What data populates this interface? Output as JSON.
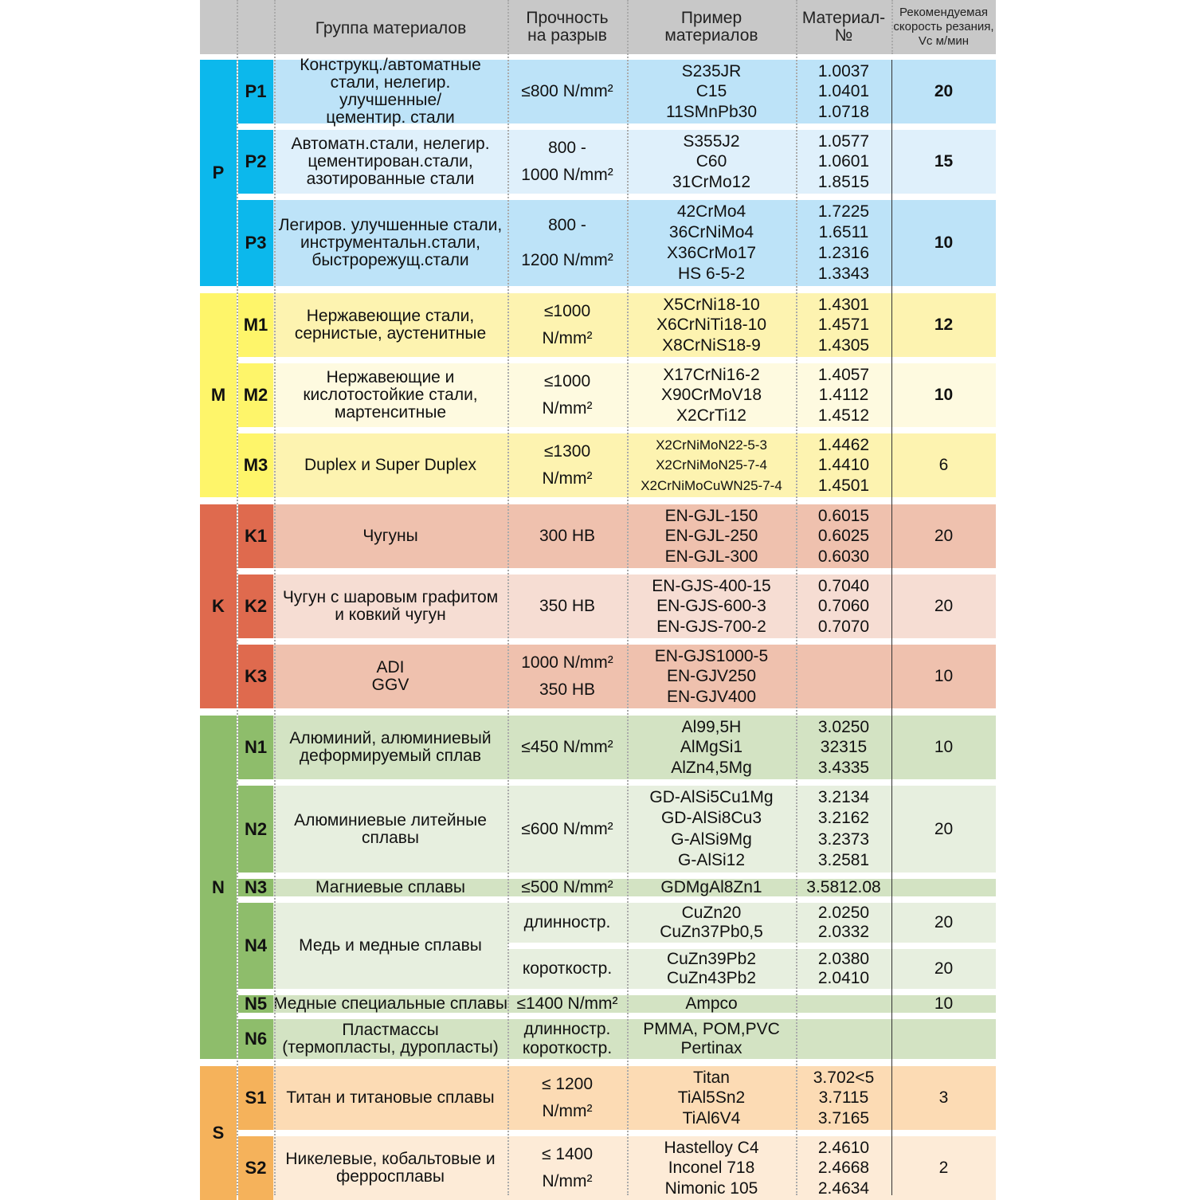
{
  "header": {
    "group": "Группа материалов",
    "strength": [
      "Прочность",
      "на разрыв"
    ],
    "example": [
      "Пример",
      "материалов"
    ],
    "matnum": [
      "Материал-",
      "№"
    ],
    "speed": [
      "Рекомендуемая",
      "скорость резания,",
      "Vc м/мин"
    ],
    "background": "#c8c8c8"
  },
  "groups": [
    {
      "letter": "P",
      "color": "#0cb8ec",
      "rows": [
        {
          "code": "P1",
          "color": "#bde3f8",
          "description": [
            "Конструкц./автоматные",
            "стали, нелегир.",
            "улучшенные/",
            "цементир. стали"
          ],
          "strength": [
            "≤800 N/mm²"
          ],
          "examples": [
            "S235JR",
            "C15",
            "11SMnPb30"
          ],
          "material_numbers": [
            "1.0037",
            "1.0401",
            "1.0718"
          ],
          "speed": "20"
        },
        {
          "code": "P2",
          "color": "#dff0fb",
          "description": [
            "Автоматн.стали, нелегир.",
            "цементирован.стали,",
            "азотированные стали"
          ],
          "strength": [
            "800 -",
            "1000 N/mm²"
          ],
          "examples": [
            "S355J2",
            "C60",
            "31CrMo12"
          ],
          "material_numbers": [
            "1.0577",
            "1.0601",
            "1.8515"
          ],
          "speed": "15"
        },
        {
          "code": "P3",
          "color": "#bde3f8",
          "description": [
            "Легиров. улучшенные стали,",
            "инструментальн.стали,",
            "быстрорежущ.стали"
          ],
          "strength": [
            "800 -",
            "1200 N/mm²"
          ],
          "examples": [
            "42CrMo4",
            "36CrNiMo4",
            "X36CrMo17",
            "HS 6-5-2"
          ],
          "material_numbers": [
            "1.7225",
            "1.6511",
            "1.2316",
            "1.3343"
          ],
          "speed": "10"
        }
      ]
    },
    {
      "letter": "M",
      "color": "#fef56a",
      "rows": [
        {
          "code": "M1",
          "color": "#fdf3b0",
          "description": [
            "Нержавеющие стали,",
            "сернистые, аустенитные"
          ],
          "strength": [
            "≤1000",
            "N/mm²"
          ],
          "examples": [
            "X5CrNi18-10",
            "X6CrNiTi18-10",
            "X8CrNiS18-9"
          ],
          "material_numbers": [
            "1.4301",
            "1.4571",
            "1.4305"
          ],
          "speed": "12"
        },
        {
          "code": "M2",
          "color": "#fefae0",
          "description": [
            "Нержавеющие и",
            "кислотостойкие стали,",
            "мартенситные"
          ],
          "strength": [
            "≤1000",
            "N/mm²"
          ],
          "examples": [
            "X17CrNi16-2",
            "X90CrMoV18",
            "X2CrTi12"
          ],
          "material_numbers": [
            "1.4057",
            "1.4112",
            "1.4512"
          ],
          "speed": "10"
        },
        {
          "code": "M3",
          "color": "#fdf3b0",
          "description": [
            "Duplex и Super Duplex"
          ],
          "strength": [
            "≤1300",
            "N/mm²"
          ],
          "examples": [
            "X2CrNiMoN22-5-3",
            "X2CrNiMoN25-7-4",
            "X2CrNiMoCuWN25-7-4"
          ],
          "material_numbers": [
            "1.4462",
            "1.4410",
            "1.4501"
          ],
          "speed": "6"
        }
      ]
    },
    {
      "letter": "K",
      "color": "#df6a4e",
      "rows": [
        {
          "code": "K1",
          "color": "#efc1ae",
          "description": [
            "Чугуны"
          ],
          "strength": [
            "300 HB"
          ],
          "examples": [
            "EN-GJL-150",
            "EN-GJL-250",
            "EN-GJL-300"
          ],
          "material_numbers": [
            "0.6015",
            "0.6025",
            "0.6030"
          ],
          "speed": "20"
        },
        {
          "code": "K2",
          "color": "#f6ddd3",
          "description": [
            "Чугун с шаровым графитом",
            "и ковкий чугун"
          ],
          "strength": [
            "350 HB"
          ],
          "examples": [
            "EN-GJS-400-15",
            "EN-GJS-600-3",
            "EN-GJS-700-2"
          ],
          "material_numbers": [
            "0.7040",
            "0.7060",
            "0.7070"
          ],
          "speed": "20"
        },
        {
          "code": "K3",
          "color": "#efc1ae",
          "description": [
            "ADI",
            "GGV"
          ],
          "strength": [
            "1000 N/mm²",
            "350 HB"
          ],
          "examples": [
            "EN-GJS1000-5",
            "EN-GJV250",
            "EN-GJV400"
          ],
          "material_numbers": [],
          "speed": "10"
        }
      ]
    },
    {
      "letter": "N",
      "color": "#8ebd6b",
      "rows": [
        {
          "code": "N1",
          "color": "#d3e3c3",
          "description": [
            "Алюминий, алюминиевый",
            "деформируемый сплав"
          ],
          "strength": [
            "≤450 N/mm²"
          ],
          "examples": [
            "Al99,5H",
            "AlMgSi1",
            "AlZn4,5Mg"
          ],
          "material_numbers": [
            "3.0250",
            "32315",
            "3.4335"
          ],
          "speed": "10"
        },
        {
          "code": "N2",
          "color": "#e7efdf",
          "description": [
            "Алюминиевые литейные",
            "сплавы"
          ],
          "strength": [
            "≤600 N/mm²"
          ],
          "examples": [
            "GD-AlSi5Cu1Mg",
            "GD-AlSi8Cu3",
            "G-AlSi9Mg",
            "G-AlSi12"
          ],
          "material_numbers": [
            "3.2134",
            "3.2162",
            "3.2373",
            "3.2581"
          ],
          "speed": "20"
        },
        {
          "code": "N3",
          "color": "#d3e3c3",
          "description": [
            "Магниевые сплавы"
          ],
          "strength": [
            "≤500 N/mm²"
          ],
          "examples": [
            "GDMgAl8Zn1"
          ],
          "material_numbers": [
            "3.5812.08"
          ],
          "speed": ""
        },
        {
          "code": "N4",
          "color": "#e7efdf",
          "description": [
            "Медь и медные сплавы"
          ],
          "subrows": [
            {
              "strength": [
                "длинностр."
              ],
              "examples": [
                "CuZn20",
                "CuZn37Pb0,5"
              ],
              "material_numbers": [
                "2.0250",
                "2.0332"
              ],
              "speed": "20"
            },
            {
              "strength": [
                "короткостр."
              ],
              "examples": [
                "CuZn39Pb2",
                "CuZn43Pb2"
              ],
              "material_numbers": [
                "2.0380",
                "2.0410"
              ],
              "speed": "20"
            }
          ]
        },
        {
          "code": "N5",
          "color": "#d3e3c3",
          "description": [
            "Медные специальные сплавы"
          ],
          "strength": [
            "≤1400 N/mm²"
          ],
          "examples": [
            "Ampco"
          ],
          "material_numbers": [],
          "speed": "10"
        },
        {
          "code": "N6",
          "color": "#d3e3c3",
          "description": [
            "Пластмассы",
            "(термопласты, дуропласты)"
          ],
          "strength": [
            "длинностр.",
            "короткостр."
          ],
          "examples": [
            "PMMA, POM,PVC",
            "Pertinax"
          ],
          "material_numbers": [],
          "speed": ""
        }
      ]
    },
    {
      "letter": "S",
      "color": "#f5b25b",
      "rows": [
        {
          "code": "S1",
          "color": "#fcdbb4",
          "description": [
            "Титан и титановые сплавы"
          ],
          "strength": [
            "≤ 1200",
            "N/mm²"
          ],
          "examples": [
            "Titan",
            "TiAl5Sn2",
            "TiAl6V4"
          ],
          "material_numbers": [
            "3.702<5",
            "3.7115",
            "3.7165"
          ],
          "speed": "3"
        },
        {
          "code": "S2",
          "color": "#fdebd7",
          "description": [
            "Никелевые, кобальтовые и",
            "ферросплавы"
          ],
          "strength": [
            "≤ 1400",
            "N/mm²"
          ],
          "examples": [
            "Hastelloy C4",
            "Inconel 718",
            "Nimonic 105"
          ],
          "material_numbers": [
            "2.4610",
            "2.4668",
            "2.4634"
          ],
          "speed": "2"
        }
      ]
    }
  ]
}
